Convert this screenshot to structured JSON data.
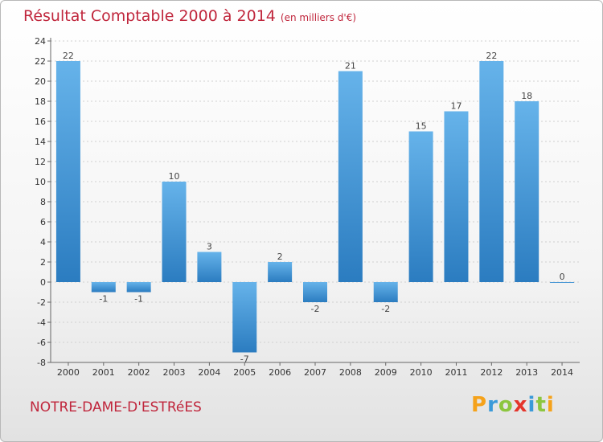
{
  "title": "Résultat Comptable 2000 à 2014",
  "subtitle": "(en milliers d'€)",
  "commune": "NOTRE-DAME-D'ESTRéES",
  "logo": {
    "letters": [
      "P",
      "r",
      "o",
      "x",
      "i",
      "t",
      "i"
    ],
    "colors": [
      "#f5a21a",
      "#3a9ad9",
      "#8cc63f",
      "#e4352b",
      "#3a9ad9",
      "#8cc63f",
      "#f5a21a"
    ]
  },
  "colors": {
    "bar_top": "#66b3ea",
    "bar_bottom": "#2b7cc0",
    "title": "#c0263c"
  },
  "chart_data": {
    "type": "bar",
    "categories": [
      "2000",
      "2001",
      "2002",
      "2003",
      "2004",
      "2005",
      "2006",
      "2007",
      "2008",
      "2009",
      "2010",
      "2011",
      "2012",
      "2013",
      "2014"
    ],
    "values": [
      22,
      -1,
      -1,
      10,
      3,
      -7,
      2,
      -2,
      21,
      -2,
      15,
      17,
      22,
      18,
      0
    ],
    "data_labels": [
      "22",
      "-1",
      "-1",
      "10",
      "3",
      "-7",
      "2",
      "-2",
      "21",
      "-2",
      "15",
      "17",
      "22",
      "18",
      "0"
    ],
    "y_ticks": [
      "-8",
      "-6",
      "-4",
      "-2",
      "0",
      "2",
      "4",
      "6",
      "8",
      "10",
      "12",
      "14",
      "16",
      "18",
      "20",
      "22",
      "24"
    ],
    "ylim": [
      -8,
      24
    ],
    "grid": true
  }
}
